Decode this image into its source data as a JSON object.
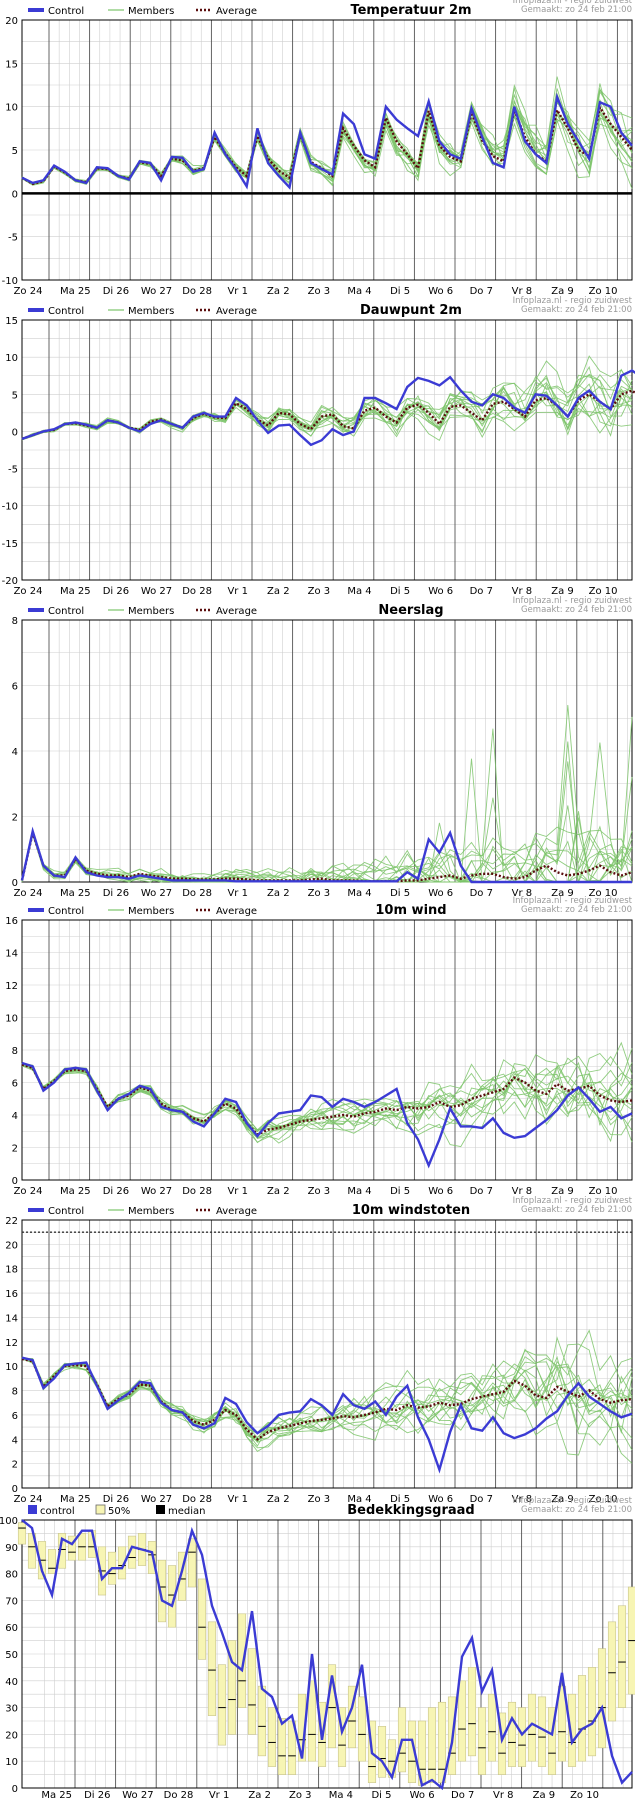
{
  "meta": {
    "source": "Infoplaza.nl - regio zuidwest",
    "made": "Gemaakt: zo 24 feb 21:00"
  },
  "colors": {
    "control": "#3b3bd4",
    "members": "#7cc46a",
    "average": "#5a0d0d",
    "box": "#f7f5b4",
    "grid": "#cfcfcf",
    "dayline": "#555555"
  },
  "x_tick_labels": [
    "Zo 24",
    "Ma 25",
    "Di 26",
    "Wo 27",
    "Do 28",
    "Vr 1",
    "Za 2",
    "Zo 3",
    "Ma 4",
    "Di 5",
    "Wo 6",
    "Do 7",
    "Vr 8",
    "Za 9",
    "Zo 10"
  ],
  "cloud_x_tick_labels": [
    "Ma 25",
    "Di 26",
    "Wo 27",
    "Do 28",
    "Vr 1",
    "Za 2",
    "Zo 3",
    "Ma 4",
    "Di 5",
    "Wo 6",
    "Do 7",
    "Vr 8",
    "Za 9",
    "Zo 10"
  ],
  "legend": {
    "control": "Control",
    "members": "Members",
    "average": "Average"
  },
  "cloud_legend": {
    "control": "control",
    "band": "50%",
    "median": "median"
  },
  "chart_data": [
    {
      "type": "line",
      "title": "Temperatuur 2m",
      "ylim": [
        -10,
        20
      ],
      "yticks": [
        -10,
        -5,
        0,
        5,
        10,
        15,
        20
      ],
      "zero_line": true,
      "series": [
        {
          "name": "Control",
          "values": [
            1.8,
            1.2,
            1.5,
            3.2,
            2.5,
            1.5,
            1.2,
            3,
            2.9,
            2,
            1.6,
            3.7,
            3.5,
            1.5,
            4.2,
            4.1,
            2.5,
            2.8,
            7.0,
            4.5,
            2.8,
            0.8,
            7.5,
            3.5,
            2.0,
            0.7,
            7.0,
            3.5,
            2.8,
            2.2,
            9.2,
            8,
            4.5,
            4,
            10,
            8.5,
            7.5,
            6.6,
            10.6,
            6,
            4.5,
            4,
            9.8,
            6.5,
            3.5,
            3.0,
            10.0,
            6,
            4.5,
            3.5,
            11.1,
            8,
            6,
            4,
            10.5,
            10,
            7,
            5.5
          ]
        },
        {
          "name": "Average",
          "values": [
            1.8,
            1.1,
            1.4,
            3.1,
            2.4,
            1.5,
            1.3,
            2.9,
            2.8,
            2.0,
            1.7,
            3.6,
            3.4,
            2.0,
            4.0,
            3.8,
            2.6,
            2.9,
            6.5,
            4.6,
            3.0,
            2.0,
            6.6,
            4.0,
            2.6,
            1.8,
            6.8,
            3.6,
            2.9,
            2.0,
            7.5,
            5.5,
            3.8,
            3.0,
            8.7,
            6.0,
            4.5,
            2.9,
            9.5,
            5.5,
            4.2,
            3.7,
            9.3,
            6.1,
            4.3,
            3.7,
            9.6,
            6.5,
            4.5,
            3.7,
            9.6,
            7.5,
            5.0,
            4.3,
            9.9,
            8.0,
            6.5,
            5.0
          ]
        }
      ]
    },
    {
      "type": "line",
      "title": "Dauwpunt 2m",
      "ylim": [
        -20,
        15
      ],
      "yticks": [
        -20,
        -15,
        -10,
        -5,
        0,
        5,
        10,
        15
      ],
      "series": [
        {
          "name": "Control",
          "values": [
            -1.0,
            -0.5,
            0.0,
            0.3,
            1.0,
            1.2,
            0.9,
            0.5,
            1.5,
            1.2,
            0.5,
            0.0,
            1.0,
            1.5,
            1.0,
            0.5,
            2.0,
            2.5,
            2.0,
            2.0,
            4.5,
            3.5,
            1.5,
            -0.2,
            0.8,
            0.9,
            -0.5,
            -1.8,
            -1.2,
            0.3,
            -0.5,
            0.0,
            4.5,
            4.5,
            3.8,
            3.0,
            6.0,
            7.2,
            6.8,
            6.2,
            7.3,
            5.5,
            4.0,
            3.5,
            5.0,
            4.5,
            3.2,
            2.5,
            5.0,
            4.8,
            3.5,
            2.0,
            4.5,
            5.5,
            4.0,
            3.0,
            7.5,
            8.2,
            7.2,
            5.0
          ]
        },
        {
          "name": "Average",
          "values": [
            -1.0,
            -0.5,
            0.0,
            0.2,
            1.0,
            1.1,
            0.8,
            0.5,
            1.5,
            1.2,
            0.5,
            0.2,
            1.3,
            1.6,
            1.0,
            0.5,
            1.8,
            2.4,
            1.9,
            1.8,
            3.8,
            3.0,
            1.6,
            0.8,
            2.5,
            2.3,
            1.0,
            0.3,
            2.0,
            2.3,
            0.7,
            0.4,
            2.8,
            3.2,
            2.0,
            1.2,
            3.2,
            3.6,
            2.5,
            1.0,
            3.3,
            3.5,
            2.5,
            1.5,
            3.7,
            4.0,
            3.0,
            2.0,
            4.2,
            4.5,
            3.5,
            2.0,
            4.2,
            5.0,
            4.0,
            3.0,
            5.0,
            5.5,
            4.5,
            3.2
          ]
        }
      ]
    },
    {
      "type": "line",
      "title": "Neerslag",
      "ylim": [
        0,
        8
      ],
      "yticks": [
        0,
        2,
        4,
        6,
        8
      ],
      "series": [
        {
          "name": "Control",
          "values": [
            0.05,
            1.55,
            0.5,
            0.2,
            0.15,
            0.75,
            0.3,
            0.2,
            0.15,
            0.15,
            0.1,
            0.2,
            0.15,
            0.1,
            0.05,
            0.05,
            0.05,
            0.05,
            0.05,
            0.05,
            0.02,
            0.02,
            0.02,
            0.02,
            0.02,
            0.02,
            0.02,
            0.02,
            0.02,
            0.02,
            0.02,
            0.02,
            0.02,
            0.02,
            0.02,
            0.02,
            0.3,
            0.1,
            1.3,
            0.9,
            1.5,
            0.5,
            0.0,
            0.0,
            0.0,
            0.0,
            0.0,
            0.0,
            0.0,
            0.0,
            0.0,
            0.0,
            0.0,
            0.0,
            0.0,
            0.0,
            0.0,
            0.0
          ]
        },
        {
          "name": "Average",
          "values": [
            0.05,
            1.5,
            0.5,
            0.2,
            0.2,
            0.7,
            0.35,
            0.25,
            0.2,
            0.2,
            0.15,
            0.25,
            0.2,
            0.15,
            0.1,
            0.1,
            0.08,
            0.08,
            0.08,
            0.1,
            0.1,
            0.08,
            0.05,
            0.05,
            0.05,
            0.05,
            0.05,
            0.08,
            0.1,
            0.05,
            0.05,
            0.05,
            0.02,
            0.02,
            0.02,
            0.02,
            0.05,
            0.05,
            0.1,
            0.15,
            0.2,
            0.1,
            0.2,
            0.25,
            0.25,
            0.15,
            0.1,
            0.15,
            0.35,
            0.5,
            0.3,
            0.2,
            0.25,
            0.35,
            0.5,
            0.3,
            0.2,
            0.3
          ]
        }
      ]
    },
    {
      "type": "line",
      "title": "10m wind",
      "ylim": [
        0,
        16
      ],
      "yticks": [
        0,
        2,
        4,
        6,
        8,
        10,
        12,
        14,
        16
      ],
      "series": [
        {
          "name": "Control",
          "values": [
            7.2,
            7.0,
            5.5,
            6.0,
            6.8,
            6.9,
            6.8,
            5.5,
            4.3,
            5.0,
            5.3,
            5.8,
            5.6,
            4.5,
            4.3,
            4.2,
            3.6,
            3.3,
            4.1,
            5.0,
            4.8,
            3.5,
            2.7,
            3.5,
            4.1,
            4.2,
            4.3,
            5.2,
            5.1,
            4.5,
            5.0,
            4.8,
            4.5,
            4.8,
            5.2,
            5.6,
            3.5,
            2.5,
            0.9,
            2.5,
            4.4,
            3.3,
            3.3,
            3.2,
            3.8,
            2.9,
            2.6,
            2.7,
            3.2,
            3.7,
            4.3,
            5.2,
            5.7,
            5.0,
            4.2,
            4.5,
            3.8,
            4.1
          ]
        },
        {
          "name": "Average",
          "values": [
            7.1,
            6.9,
            5.6,
            6.1,
            6.7,
            6.8,
            6.7,
            5.6,
            4.5,
            5.0,
            5.2,
            5.7,
            5.5,
            4.7,
            4.3,
            4.2,
            3.8,
            3.6,
            4.1,
            4.7,
            4.4,
            3.5,
            2.8,
            3.1,
            3.2,
            3.4,
            3.6,
            3.7,
            3.8,
            3.9,
            4.0,
            3.9,
            4.1,
            4.2,
            4.4,
            4.3,
            4.5,
            4.4,
            4.5,
            4.8,
            4.5,
            4.6,
            5.0,
            5.2,
            5.4,
            5.6,
            6.3,
            6.0,
            5.5,
            5.3,
            5.9,
            5.5,
            5.6,
            5.8,
            5.2,
            4.9,
            4.8,
            4.9
          ]
        }
      ]
    },
    {
      "type": "line",
      "title": "10m windstoten",
      "ylim": [
        0,
        22
      ],
      "yticks": [
        0,
        2,
        4,
        6,
        8,
        10,
        12,
        14,
        16,
        18,
        20,
        22
      ],
      "threshold": 21,
      "series": [
        {
          "name": "Control",
          "values": [
            10.7,
            10.5,
            8.2,
            9.0,
            10.1,
            10.2,
            10.3,
            8.4,
            6.5,
            7.2,
            7.8,
            8.7,
            8.6,
            7.0,
            6.4,
            6.2,
            5.2,
            4.9,
            5.3,
            7.4,
            6.9,
            5.4,
            4.5,
            5.1,
            6.0,
            6.2,
            6.3,
            7.3,
            6.8,
            6.0,
            7.7,
            6.8,
            6.5,
            7.1,
            6.0,
            7.5,
            8.4,
            5.8,
            4.0,
            1.5,
            4.6,
            6.8,
            4.9,
            4.7,
            5.8,
            4.5,
            4.1,
            4.4,
            4.9,
            5.7,
            6.3,
            7.6,
            8.6,
            7.5,
            6.9,
            6.3,
            5.8,
            6.1
          ]
        },
        {
          "name": "Average",
          "values": [
            10.6,
            10.4,
            8.3,
            9.2,
            10.0,
            10.1,
            10.0,
            8.5,
            6.7,
            7.3,
            7.7,
            8.5,
            8.4,
            7.1,
            6.4,
            6.2,
            5.5,
            5.2,
            5.6,
            6.4,
            6.0,
            4.8,
            4.0,
            4.6,
            4.9,
            5.1,
            5.3,
            5.5,
            5.6,
            5.7,
            5.9,
            5.8,
            6.0,
            6.2,
            6.5,
            6.4,
            6.8,
            6.6,
            6.7,
            7.0,
            6.8,
            6.9,
            7.3,
            7.5,
            7.7,
            7.9,
            8.8,
            8.4,
            7.6,
            7.4,
            8.3,
            7.9,
            7.5,
            8.0,
            7.3,
            7.0,
            7.2,
            7.3
          ]
        }
      ]
    },
    {
      "type": "bar",
      "title": "Bedekkingsgraad",
      "ylim": [
        0,
        100
      ],
      "yticks": [
        0,
        10,
        20,
        30,
        40,
        50,
        60,
        70,
        80,
        90,
        100
      ],
      "series": [
        {
          "name": "control",
          "values": [
            100,
            97,
            81,
            72,
            93,
            91,
            96,
            96,
            78,
            82,
            82,
            90,
            89,
            88,
            70,
            68,
            81,
            96,
            87,
            68,
            58,
            47,
            44,
            66,
            37,
            34,
            24,
            27,
            11,
            50,
            18,
            42,
            21,
            30,
            46,
            13,
            10,
            4,
            18,
            18,
            1,
            3,
            0,
            17,
            49,
            56,
            36,
            44,
            18,
            26,
            20,
            24,
            22,
            20,
            43,
            17,
            22,
            24,
            30,
            12,
            2,
            6
          ]
        },
        {
          "name": "median",
          "values": [
            97,
            90,
            85,
            82,
            89,
            88,
            90,
            90,
            81,
            80,
            83,
            86,
            89,
            87,
            75,
            72,
            78,
            88,
            60,
            44,
            30,
            33,
            40,
            31,
            23,
            17,
            12,
            12,
            18,
            20,
            17,
            30,
            16,
            25,
            20,
            8,
            11,
            10,
            13,
            10,
            7,
            7,
            7,
            13,
            22,
            24,
            15,
            21,
            13,
            17,
            16,
            20,
            19,
            13,
            21,
            17,
            22,
            25,
            30,
            43,
            47,
            55
          ]
        },
        {
          "name": "50%",
          "values": [
            [
              91,
              99
            ],
            [
              82,
              95
            ],
            [
              78,
              92
            ],
            [
              80,
              89
            ],
            [
              82,
              95
            ],
            [
              85,
              94
            ],
            [
              85,
              95
            ],
            [
              86,
              96
            ],
            [
              72,
              90
            ],
            [
              76,
              88
            ],
            [
              78,
              90
            ],
            [
              82,
              94
            ],
            [
              83,
              95
            ],
            [
              80,
              92
            ],
            [
              62,
              85
            ],
            [
              60,
              83
            ],
            [
              70,
              88
            ],
            [
              75,
              93
            ],
            [
              48,
              78
            ],
            [
              27,
              62
            ],
            [
              16,
              46
            ],
            [
              20,
              55
            ],
            [
              30,
              65
            ],
            [
              20,
              52
            ],
            [
              12,
              38
            ],
            [
              8,
              30
            ],
            [
              5,
              26
            ],
            [
              5,
              25
            ],
            [
              10,
              35
            ],
            [
              10,
              40
            ],
            [
              8,
              32
            ],
            [
              15,
              46
            ],
            [
              8,
              30
            ],
            [
              15,
              38
            ],
            [
              10,
              34
            ],
            [
              2,
              25
            ],
            [
              4,
              23
            ],
            [
              4,
              18
            ],
            [
              6,
              30
            ],
            [
              2,
              25
            ],
            [
              1,
              25
            ],
            [
              2,
              30
            ],
            [
              2,
              32
            ],
            [
              5,
              34
            ],
            [
              10,
              40
            ],
            [
              12,
              45
            ],
            [
              5,
              30
            ],
            [
              10,
              35
            ],
            [
              5,
              28
            ],
            [
              8,
              32
            ],
            [
              8,
              30
            ],
            [
              10,
              35
            ],
            [
              8,
              34
            ],
            [
              5,
              30
            ],
            [
              10,
              38
            ],
            [
              8,
              35
            ],
            [
              10,
              42
            ],
            [
              12,
              45
            ],
            [
              15,
              52
            ],
            [
              25,
              62
            ],
            [
              30,
              68
            ],
            [
              35,
              75
            ]
          ]
        }
      ]
    }
  ]
}
